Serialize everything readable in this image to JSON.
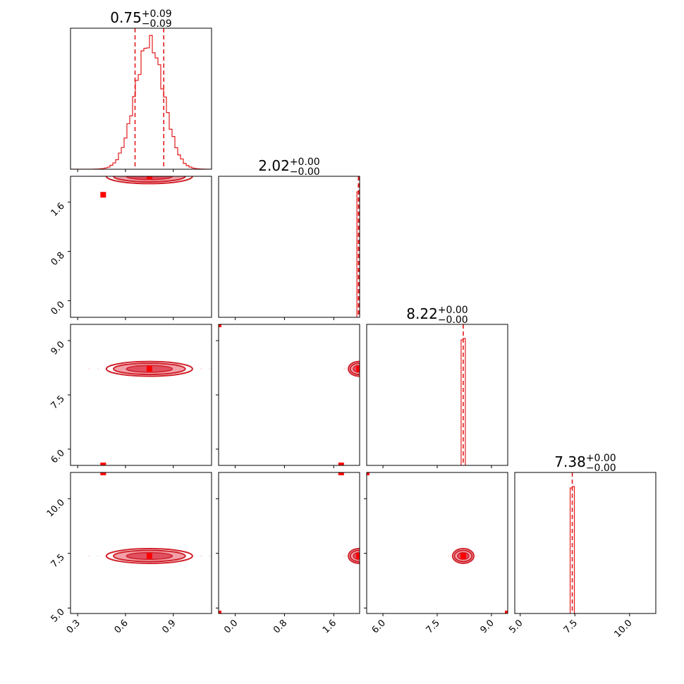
{
  "chart_data": {
    "type": "corner",
    "colors": {
      "accent": "#e41a1c",
      "dark": "#d0202a",
      "fill_mid": "#e05060",
      "fill_light": "#f2a0a8",
      "axes": "#000000"
    },
    "variables": [
      {
        "index": 0,
        "title": {
          "value": "0.75",
          "plus": "+0.09",
          "minus": "−0.09"
        },
        "range": [
          0.255,
          1.14
        ],
        "ticks": [
          {
            "value": 0.3,
            "label": "0.3"
          },
          {
            "value": 0.6,
            "label": "0.6"
          },
          {
            "value": 0.9,
            "label": "0.9"
          }
        ],
        "quantiles": [
          0.66,
          0.84
        ],
        "hist": {
          "center": 0.75,
          "sigma": 0.09
        }
      },
      {
        "index": 1,
        "title": {
          "value": "2.02",
          "plus": "+0.00",
          "minus": "−0.00"
        },
        "range": [
          -0.27,
          2.02
        ],
        "ticks": [
          {
            "value": 0.0,
            "label": "0.0"
          },
          {
            "value": 0.8,
            "label": "0.8"
          },
          {
            "value": 1.6,
            "label": "1.6"
          }
        ],
        "quantiles": [
          2.0,
          2.015
        ],
        "hist": {
          "center": 2.01,
          "sigma": 0.005
        }
      },
      {
        "index": 2,
        "title": {
          "value": "8.22",
          "plus": "+0.00",
          "minus": "−0.00"
        },
        "range": [
          5.55,
          9.45
        ],
        "ticks": [
          {
            "value": 6.0,
            "label": "6.0"
          },
          {
            "value": 7.5,
            "label": "7.5"
          },
          {
            "value": 9.0,
            "label": "9.0"
          }
        ],
        "quantiles": [
          8.22
        ],
        "hist": {
          "center": 8.22,
          "sigma": 0.02
        }
      },
      {
        "index": 3,
        "title": {
          "value": "7.38",
          "plus": "+0.00",
          "minus": "−0.00"
        },
        "range": [
          4.75,
          11.2
        ],
        "ticks": [
          {
            "value": 5.0,
            "label": "5.0"
          },
          {
            "value": 7.5,
            "label": "7.5"
          },
          {
            "value": 10.0,
            "label": "10.0"
          }
        ],
        "quantiles": [
          7.38
        ],
        "hist": {
          "center": 7.38,
          "sigma": 0.03
        }
      }
    ],
    "panels_2d": [
      {
        "xvar": 0,
        "yvar": 1,
        "center": [
          0.75,
          2.02
        ],
        "spread": [
          0.09,
          0.005
        ],
        "markers": [
          [
            0.46,
            1.72
          ]
        ]
      },
      {
        "xvar": 0,
        "yvar": 2,
        "center": [
          0.75,
          8.22
        ],
        "spread": [
          0.09,
          0.05
        ],
        "markers": [
          [
            0.46,
            5.55
          ]
        ]
      },
      {
        "xvar": 1,
        "yvar": 2,
        "center": [
          2.01,
          8.22
        ],
        "spread": [
          0.01,
          0.05
        ],
        "markers": [
          [
            -0.27,
            9.45
          ],
          [
            1.72,
            5.55
          ]
        ]
      },
      {
        "xvar": 0,
        "yvar": 3,
        "center": [
          0.75,
          7.38
        ],
        "spread": [
          0.09,
          0.05
        ],
        "markers": [
          [
            0.46,
            11.2
          ]
        ]
      },
      {
        "xvar": 1,
        "yvar": 3,
        "center": [
          2.01,
          7.38
        ],
        "spread": [
          0.01,
          0.05
        ],
        "markers": [
          [
            1.72,
            11.2
          ],
          [
            -0.27,
            4.75
          ]
        ]
      },
      {
        "xvar": 2,
        "yvar": 3,
        "center": [
          8.22,
          7.38
        ],
        "spread": [
          0.02,
          0.05
        ],
        "markers": [
          [
            5.55,
            11.2
          ],
          [
            9.45,
            4.75
          ]
        ]
      }
    ],
    "grid": false
  }
}
